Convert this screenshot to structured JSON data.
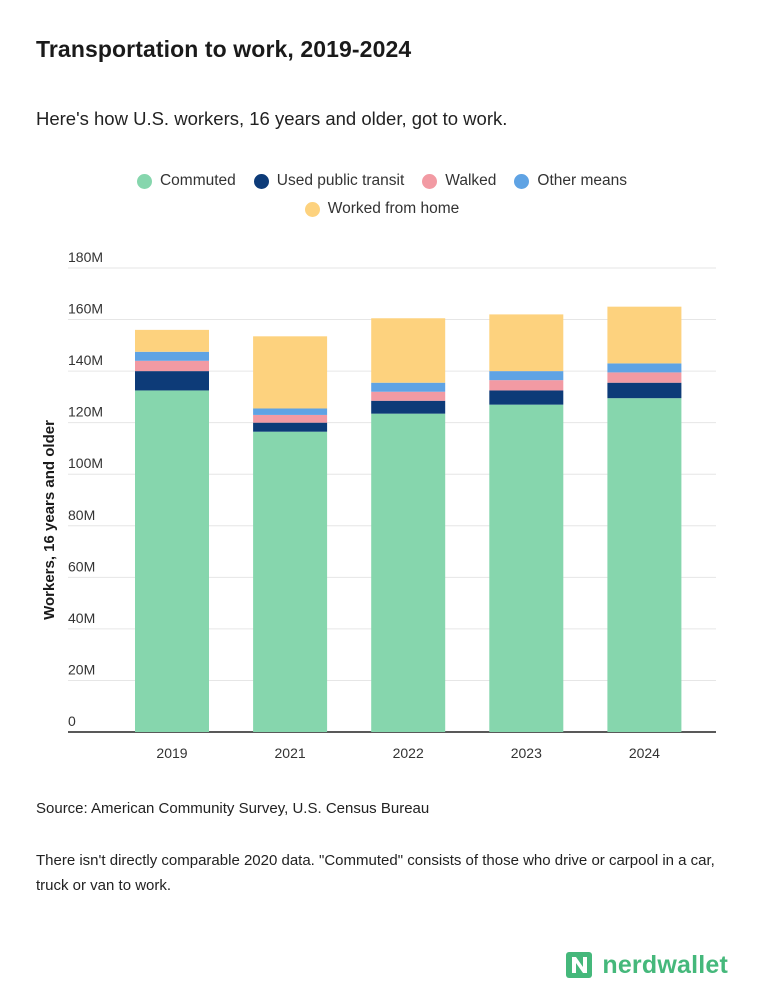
{
  "title": "Transportation to work, 2019-2024",
  "subtitle": "Here's how U.S. workers, 16 years and older, got to work.",
  "source": "Source: American Community Survey, U.S. Census Bureau",
  "note": "There isn't directly comparable 2020 data. \"Commuted\" consists of those who drive or carpool in a car, truck or van to work.",
  "brand": {
    "name": "nerdwallet",
    "logo_icon": "nerdwallet-logo-icon",
    "color": "#45b87b"
  },
  "colors": {
    "Commuted": "#86d6ad",
    "Used public transit": "#0d3b78",
    "Walked": "#f29aa3",
    "Other means": "#5fa3e4",
    "Worked from home": "#fdd27e"
  },
  "chart_data": {
    "type": "bar",
    "stacked": true,
    "categories": [
      "2019",
      "2021",
      "2022",
      "2023",
      "2024"
    ],
    "series": [
      {
        "name": "Commuted",
        "values": [
          132.5,
          116.5,
          123.5,
          127,
          129.5
        ]
      },
      {
        "name": "Used public transit",
        "values": [
          7.5,
          3.5,
          5,
          5.5,
          6
        ]
      },
      {
        "name": "Walked",
        "values": [
          4,
          3,
          3.5,
          4,
          4
        ]
      },
      {
        "name": "Other means",
        "values": [
          3.5,
          2.5,
          3.5,
          3.5,
          3.5
        ]
      },
      {
        "name": "Worked from home",
        "values": [
          8.5,
          28,
          25,
          22,
          22
        ]
      }
    ],
    "ylabel": "Workers, 16 years and older",
    "xlabel": "",
    "ylim": [
      0,
      180
    ],
    "yticks": [
      "0",
      "20M",
      "40M",
      "60M",
      "80M",
      "100M",
      "120M",
      "140M",
      "160M",
      "180M"
    ],
    "grid": true,
    "legend_position": "top"
  }
}
